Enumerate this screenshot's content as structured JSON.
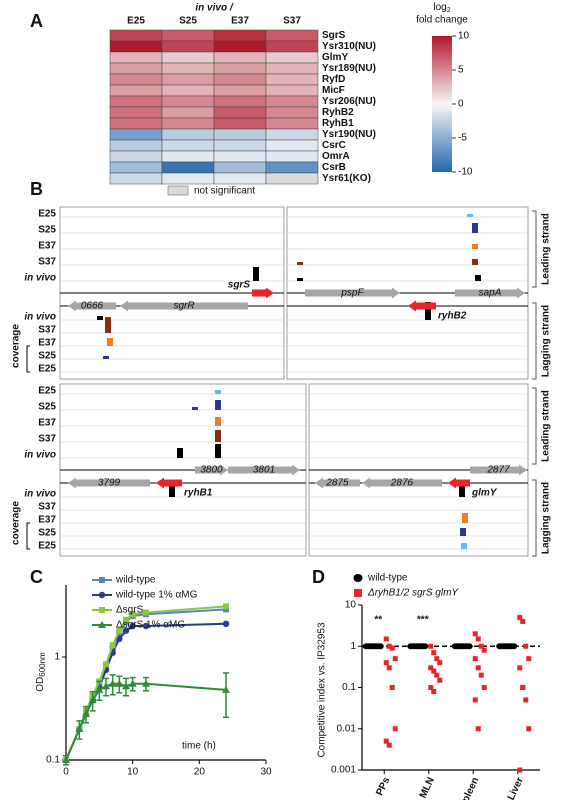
{
  "panel_labels": [
    "A",
    "B",
    "C",
    "D"
  ],
  "chart_data": [
    {
      "type": "heatmap",
      "title": "in vivo /",
      "x": [
        "E25",
        "S25",
        "E37",
        "S37"
      ],
      "y": [
        "SgrS",
        "Ysr310(NU)",
        "GlmY",
        "Ysr189(NU)",
        "RyfD",
        "MicF",
        "Ysr206(NU)",
        "RyhB2",
        "RyhB1",
        "Ysr190(NU)",
        "CsrC",
        "OmrA",
        "CsrB",
        "Ysr61(KO)"
      ],
      "values": [
        [
          8,
          7,
          9,
          7
        ],
        [
          10,
          8,
          10,
          8
        ],
        [
          3,
          2,
          3,
          2
        ],
        [
          4,
          3,
          4,
          3
        ],
        [
          5,
          4,
          5,
          3
        ],
        [
          4,
          3,
          4,
          3
        ],
        [
          6,
          5,
          6,
          5
        ],
        [
          6,
          4,
          7,
          5
        ],
        [
          6,
          5,
          7,
          5
        ],
        [
          -6,
          -3,
          -3,
          -2
        ],
        [
          -3,
          -2,
          -2,
          -1
        ],
        [
          -2,
          -1,
          -1,
          -1
        ],
        [
          -4,
          -9,
          -4,
          -7
        ],
        [
          -2,
          -1,
          -1,
          null
        ]
      ],
      "colors": [
        "#2166ac",
        "#f7f7f7",
        "#b2182b"
      ],
      "null_color": "#d9d9d9",
      "null_label": "not significant",
      "zlim": [
        -10,
        10
      ],
      "zticks": [
        10,
        5,
        0,
        -5,
        -10
      ],
      "colorbar_label": "log",
      "colorbar_label_sub": "2",
      "colorbar_label_2": "fold change"
    },
    {
      "type": "line",
      "xlabel": "time (h)",
      "ylabel": "OD",
      "ylabel_sub": "600nm",
      "x": [
        0,
        2,
        3,
        4,
        5,
        6,
        7,
        8,
        9,
        10,
        12,
        24
      ],
      "xlim": [
        0,
        30
      ],
      "xticks": [
        0,
        10,
        20,
        30
      ],
      "ylim": [
        0.1,
        5
      ],
      "yticks": [
        0.1,
        1
      ],
      "yscale": "log",
      "series": [
        {
          "name": "wild-type",
          "color": "#4f86c6",
          "marker": "square",
          "values": [
            0.1,
            0.2,
            0.28,
            0.4,
            0.55,
            0.8,
            1.2,
            1.7,
            2.2,
            2.5,
            2.6,
            2.9
          ]
        },
        {
          "name": "wild-type 1% αMG",
          "color": "#2b3a8f",
          "marker": "circle",
          "values": [
            0.1,
            0.2,
            0.28,
            0.38,
            0.5,
            0.75,
            1.1,
            1.5,
            1.8,
            2.0,
            2.0,
            2.1
          ]
        },
        {
          "name": "ΔsgrS",
          "color": "#8cc63f",
          "marker": "square",
          "values": [
            0.1,
            0.2,
            0.3,
            0.42,
            0.58,
            0.85,
            1.3,
            1.8,
            2.3,
            2.6,
            2.7,
            3.1
          ]
        },
        {
          "name": "ΔsgrS 1% αMG",
          "color": "#2e8b3a",
          "marker": "triangle",
          "values": [
            0.1,
            0.2,
            0.28,
            0.38,
            0.48,
            0.52,
            0.55,
            0.55,
            0.52,
            0.55,
            0.55,
            0.48
          ],
          "errors": [
            0.01,
            0.04,
            0.05,
            0.08,
            0.1,
            0.1,
            0.12,
            0.1,
            0.1,
            0.08,
            0.08,
            0.22
          ]
        }
      ]
    },
    {
      "type": "strip",
      "ylabel": "Competitive index vs. IP32953",
      "categories": [
        "PPs",
        "MLN",
        "Spleen",
        "Liver"
      ],
      "ylim": [
        0.001,
        10
      ],
      "yticks": [
        0.001,
        0.01,
        0.1,
        1,
        10
      ],
      "yscale": "log",
      "refline": 1,
      "annotations": [
        "**",
        "***",
        null,
        null
      ],
      "series": [
        {
          "name": "wild-type",
          "color": "#000000",
          "marker": "circle",
          "values": [
            [
              1,
              1,
              1,
              1,
              1,
              1,
              1,
              1
            ],
            [
              1,
              1,
              1,
              1,
              1,
              1,
              1,
              1
            ],
            [
              1,
              1,
              1,
              1,
              1,
              1,
              1,
              1
            ],
            [
              1,
              1,
              1,
              1,
              1,
              1,
              1,
              1
            ]
          ]
        },
        {
          "name": "ΔryhB1/2 sgrS glmY",
          "color": "#e8232a",
          "marker": "square",
          "values": [
            [
              1.5,
              1.0,
              0.9,
              0.5,
              0.4,
              0.3,
              0.1,
              0.01,
              0.005,
              0.004
            ],
            [
              1.0,
              0.7,
              0.5,
              0.4,
              0.3,
              0.25,
              0.2,
              0.15,
              0.1,
              0.08
            ],
            [
              2.0,
              1.5,
              1.0,
              0.8,
              0.5,
              0.3,
              0.2,
              0.1,
              0.05,
              0.01
            ],
            [
              5,
              4,
              1.0,
              0.5,
              0.3,
              0.1,
              0.05,
              0.01,
              0.001,
              0.1
            ]
          ]
        }
      ]
    }
  ],
  "panel_b": {
    "leading_tracks": [
      "E25",
      "S25",
      "E37",
      "S37",
      "in vivo"
    ],
    "lagging_tracks": [
      "in vivo",
      "S37",
      "E37",
      "S25",
      "E25"
    ],
    "coverage_label": "coverage",
    "strand_labels": [
      "Leading strand",
      "Lagging strand"
    ],
    "quadrants": [
      {
        "genes": [
          "0666",
          "sgrR",
          "sgrS"
        ]
      },
      {
        "genes": [
          "pspF",
          "sapA",
          "ryhB2"
        ]
      },
      {
        "genes": [
          "3800",
          "3801",
          "3799",
          "ryhB1"
        ]
      },
      {
        "genes": [
          "2877",
          "2875",
          "2876",
          "glmY"
        ]
      }
    ]
  }
}
